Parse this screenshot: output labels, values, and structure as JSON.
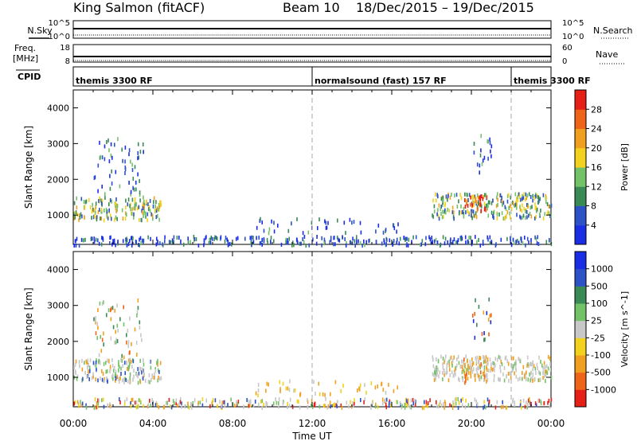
{
  "header": {
    "station": "King Salmon (fitACF)",
    "beam": "Beam 10",
    "dates": "18/Dec/2015 – 19/Dec/2015"
  },
  "strips": {
    "nsky_label": "N.Sky",
    "nsearch_label": "N.Search",
    "freq_label_top": "Freq.",
    "freq_label_bottom": "[MHz]",
    "nave_label": "Nave",
    "cpid_label": "CPID",
    "noise_ticks_left": [
      "10^5",
      "10^0"
    ],
    "noise_ticks_right": [
      "10^5",
      "10^0"
    ],
    "freq_ticks": [
      "18",
      "8"
    ],
    "nave_ticks": [
      "60",
      "0"
    ]
  },
  "cpid_segments": [
    {
      "label": "themis 3300 RF",
      "start_hour": 0
    },
    {
      "label": "normalsound (fast) 157 RF",
      "start_hour": 12
    },
    {
      "label": "themis 3300 RF",
      "start_hour": 22
    }
  ],
  "time_axis": {
    "label": "Time UT",
    "ticks": [
      "00:00",
      "04:00",
      "08:00",
      "12:00",
      "16:00",
      "20:00",
      "00:00"
    ]
  },
  "chart_data": [
    {
      "type": "heatmap",
      "title": "",
      "xlabel": "Time UT",
      "ylabel": "Slant Range [km]",
      "xlim_hours": [
        0,
        24
      ],
      "ylim_km": [
        180,
        4500
      ],
      "yticks": [
        1000,
        2000,
        3000,
        4000
      ],
      "colorbar": {
        "label": "Power [dB]",
        "ticks": [
          "4",
          "8",
          "12",
          "16",
          "20",
          "24",
          "28"
        ],
        "colors": [
          "#1a2ee6",
          "#2d52c8",
          "#3a8a56",
          "#74c268",
          "#f2d21c",
          "#f0a020",
          "#ee6418",
          "#e61f17"
        ],
        "range": [
          0,
          32
        ]
      },
      "regions": [
        {
          "name": "early-band",
          "x": [
            0.0,
            4.4
          ],
          "y": [
            900,
            1550
          ],
          "level": 0.45
        },
        {
          "name": "early-upper",
          "x": [
            1.0,
            3.5
          ],
          "y": [
            1600,
            3200
          ],
          "level": 0.18
        },
        {
          "name": "near-range",
          "x": [
            0.0,
            24.0
          ],
          "y": [
            200,
            450
          ],
          "level": 0.15
        },
        {
          "name": "midday-patches",
          "x": [
            9.0,
            16.5
          ],
          "y": [
            550,
            950
          ],
          "level": 0.15
        },
        {
          "name": "evening-band",
          "x": [
            18.0,
            24.0
          ],
          "y": [
            950,
            1650
          ],
          "level": 0.4
        },
        {
          "name": "evening-upper",
          "x": [
            20.0,
            21.0
          ],
          "y": [
            2000,
            3300
          ],
          "level": 0.2
        },
        {
          "name": "evening-core",
          "x": [
            19.6,
            20.8
          ],
          "y": [
            1150,
            1600
          ],
          "level": 0.85
        }
      ]
    },
    {
      "type": "heatmap",
      "title": "",
      "xlabel": "Time UT",
      "ylabel": "Slant Range [km]",
      "xlim_hours": [
        0,
        24
      ],
      "ylim_km": [
        180,
        4500
      ],
      "yticks": [
        1000,
        2000,
        3000,
        4000
      ],
      "colorbar": {
        "label": "Velocity [m s^-1]",
        "ticks": [
          "-1000",
          "-500",
          "-100",
          "-25",
          "25",
          "100",
          "500",
          "1000"
        ],
        "colors": [
          "#e61f17",
          "#ee6418",
          "#f0a020",
          "#f2d21c",
          "#c8c8c8",
          "#74c268",
          "#3a8a56",
          "#2d52c8",
          "#1a2ee6"
        ],
        "range": [
          -1250,
          1250
        ]
      },
      "regions": [
        {
          "name": "early-band",
          "x": [
            0.0,
            4.4
          ],
          "y": [
            900,
            1550
          ],
          "level": "mixed-gray-green"
        },
        {
          "name": "early-upper",
          "x": [
            1.0,
            3.5
          ],
          "y": [
            1600,
            3200
          ],
          "level": "mixed-orange-green"
        },
        {
          "name": "near-range",
          "x": [
            0.0,
            24.0
          ],
          "y": [
            200,
            450
          ],
          "level": "mixed"
        },
        {
          "name": "midday-patches",
          "x": [
            9.0,
            16.5
          ],
          "y": [
            550,
            950
          ],
          "level": "orange-yellow"
        },
        {
          "name": "evening-band",
          "x": [
            18.0,
            24.0
          ],
          "y": [
            950,
            1650
          ],
          "level": "gray"
        },
        {
          "name": "evening-upper",
          "x": [
            20.0,
            21.0
          ],
          "y": [
            2000,
            3300
          ],
          "level": "orange-green"
        },
        {
          "name": "evening-core",
          "x": [
            19.6,
            20.8
          ],
          "y": [
            900,
            1600
          ],
          "level": "orange"
        }
      ]
    }
  ]
}
